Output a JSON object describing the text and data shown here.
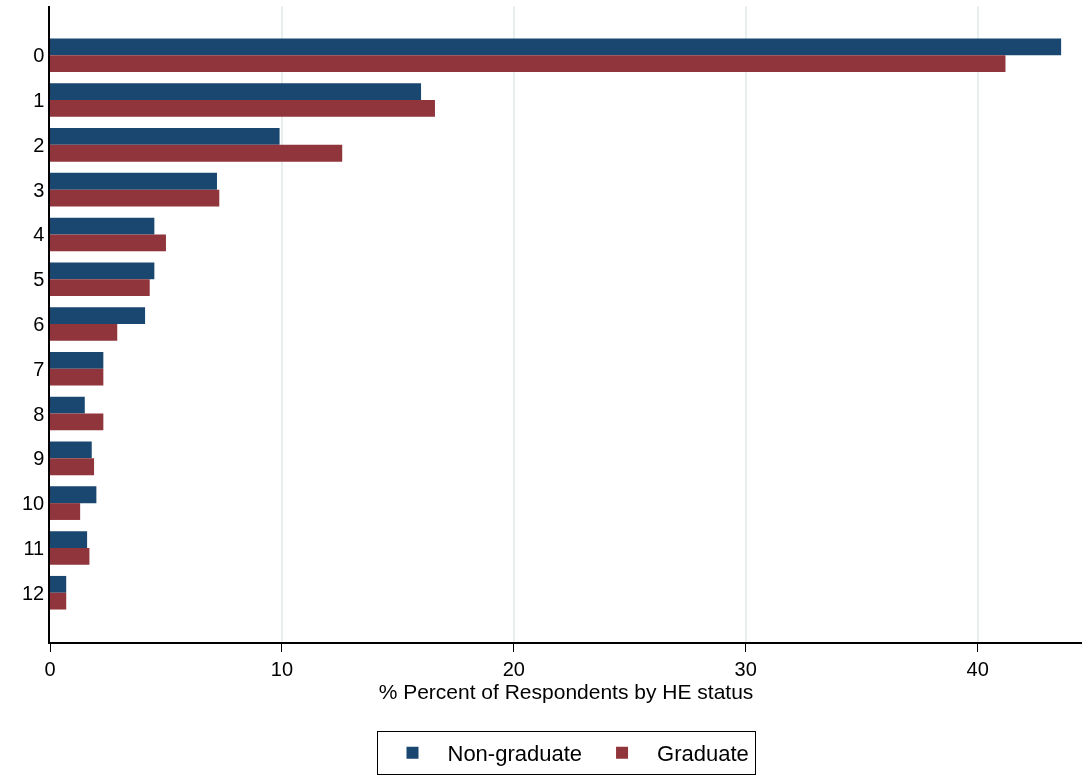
{
  "chart_data": {
    "type": "bar",
    "orientation": "horizontal",
    "xlabel": "% Percent of Respondents by HE status",
    "categories": [
      "0",
      "1",
      "2",
      "3",
      "4",
      "5",
      "6",
      "7",
      "8",
      "9",
      "10",
      "11",
      "12"
    ],
    "series": [
      {
        "name": "Non-graduate",
        "color": "#1a476f",
        "values": [
          43.6,
          16.0,
          9.9,
          7.2,
          4.5,
          4.5,
          4.1,
          2.3,
          1.5,
          1.8,
          2.0,
          1.6,
          0.7
        ]
      },
      {
        "name": "Graduate",
        "color": "#90353b",
        "values": [
          41.2,
          16.6,
          12.6,
          7.3,
          5.0,
          4.3,
          2.9,
          2.3,
          2.3,
          1.9,
          1.3,
          1.7,
          0.7
        ]
      }
    ],
    "xlim": [
      0,
      44.5
    ],
    "xticks": [
      0,
      10,
      20,
      30,
      40
    ],
    "grid": "x",
    "legend": "bottom"
  }
}
